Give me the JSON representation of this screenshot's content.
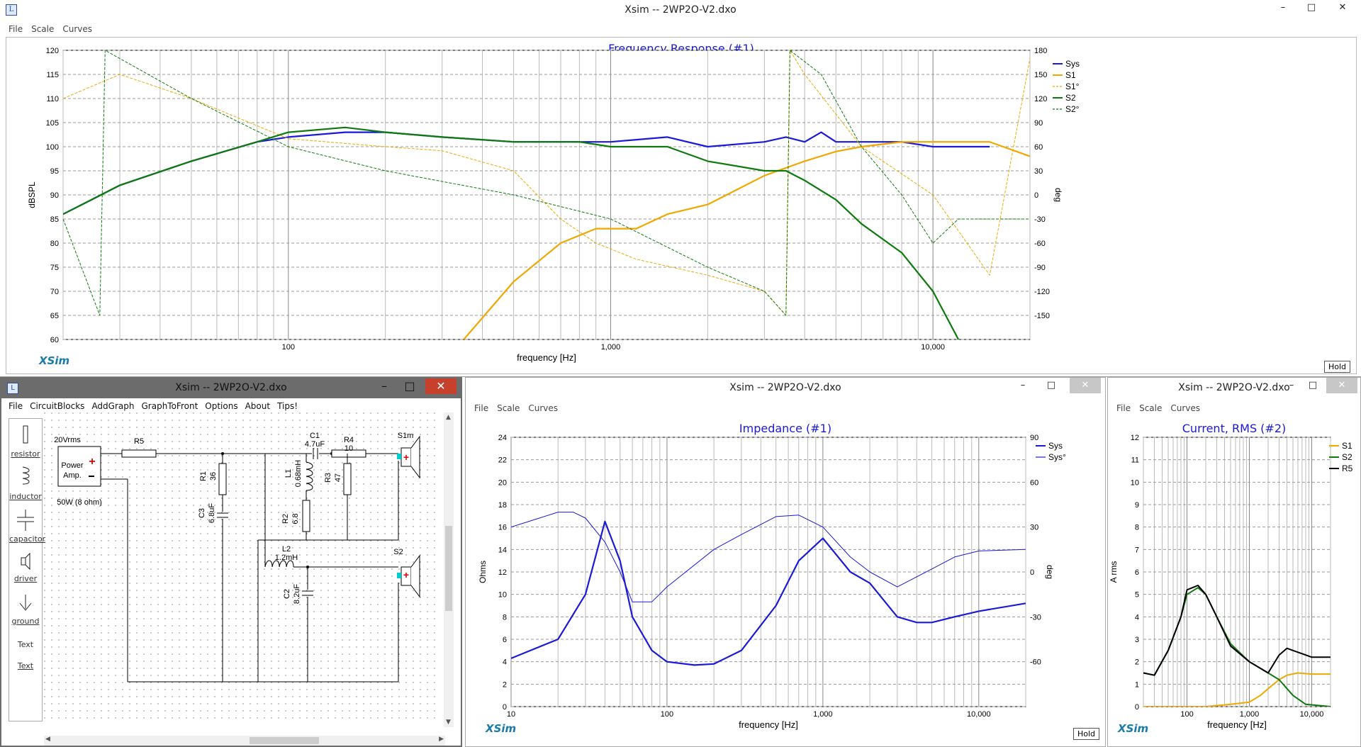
{
  "top_window": {
    "title": "Xsim -- 2WP2O-V2.dxo",
    "menu": [
      "File",
      "Scale",
      "Curves"
    ],
    "graph_title": "Frequency Response (#1)",
    "y_left_label": "dBSPL",
    "y_right_label": "deg",
    "x_label": "frequency [Hz]",
    "logo": "XSim",
    "hold": "Hold",
    "y_left_ticks": [
      "120",
      "115",
      "110",
      "105",
      "100",
      "95",
      "90",
      "85",
      "80",
      "75",
      "70",
      "65",
      "60"
    ],
    "y_right_ticks": [
      "180",
      "150",
      "120",
      "90",
      "60",
      "30",
      "0",
      "-30",
      "-60",
      "-90",
      "-120",
      "-150"
    ],
    "x_ticks": [
      "100",
      "1,000",
      "10,000"
    ],
    "legend": [
      "Sys",
      "S1",
      "S1°",
      "S2",
      "S2°"
    ]
  },
  "circuit_window": {
    "title": "Xsim -- 2WP2O-V2.dxo",
    "menu": [
      "File",
      "CircuitBlocks",
      "AddGraph",
      "GraphToFront",
      "Options",
      "About",
      "Tips!"
    ],
    "palette": [
      "resistor",
      "inductor",
      "capacitor",
      "driver",
      "ground",
      "Text",
      "Text"
    ],
    "components": {
      "source": "20Vrms",
      "amp_line1": "Power",
      "amp_line2": "Amp.",
      "amp_rating": "50W (8 ohm)",
      "r5": "R5",
      "c1": "C1",
      "c1v": "4.7uF",
      "r4": "R4",
      "r4v": "10",
      "s1": "S1m",
      "r1": "R1",
      "r1v": "36",
      "l1": "L1",
      "l1v": "0.68mH",
      "r3": "R3",
      "r3v": "47",
      "c3": "C3",
      "c3v": "6.8uF",
      "r2": "R2",
      "r2v": "6.8",
      "l2": "L2",
      "l2v": "1.2mH",
      "s2": "S2",
      "c2": "C2",
      "c2v": "8.2uF"
    }
  },
  "impedance_window": {
    "title": "Xsim -- 2WP2O-V2.dxo",
    "menu": [
      "File",
      "Scale",
      "Curves"
    ],
    "graph_title": "Impedance (#1)",
    "y_left_label": "Ohms",
    "y_right_label": "deg",
    "x_label": "frequency [Hz]",
    "logo": "XSim",
    "hold": "Hold",
    "y_left_ticks": [
      "24",
      "22",
      "20",
      "18",
      "16",
      "14",
      "12",
      "10",
      "8",
      "6",
      "4",
      "2",
      "0"
    ],
    "y_right_ticks": [
      "90",
      "60",
      "30",
      "0",
      "-30",
      "-60"
    ],
    "x_ticks": [
      "10",
      "100",
      "1,000",
      "10,000"
    ],
    "legend": [
      "Sys",
      "Sys°"
    ]
  },
  "current_window": {
    "title": "Xsim -- 2WP2O-V2.dxo",
    "menu": [
      "File",
      "Scale",
      "Curves"
    ],
    "graph_title": "Current, RMS (#2)",
    "y_left_label": "A rms",
    "x_label": "frequency [Hz]",
    "logo": "XSim",
    "y_left_ticks": [
      "12",
      "11",
      "10",
      "9",
      "8",
      "7",
      "6",
      "5",
      "4",
      "3",
      "2",
      "1",
      "0"
    ],
    "x_ticks": [
      "100",
      "1,000",
      "10,000"
    ],
    "legend": [
      "S1",
      "S2",
      "R5"
    ]
  },
  "colors": {
    "sys": "#1a1ad8",
    "s1": "#f0a800",
    "s2": "#0e7a0e",
    "r5": "#000000",
    "title_blue": "#1a1ad8",
    "logo": "#1a7bab",
    "close_red": "#c7402b"
  },
  "chart_data": [
    {
      "type": "line",
      "title": "Frequency Response (#1)",
      "xlabel": "frequency [Hz]",
      "ylabel": "dBSPL",
      "x_scale": "log",
      "xlim": [
        20,
        20000
      ],
      "ylim": [
        60,
        120
      ],
      "y2lim": [
        -180,
        180
      ],
      "grid": true,
      "legend_position": "top-right",
      "series": [
        {
          "name": "Sys",
          "axis": "left",
          "x": [
            20,
            30,
            50,
            80,
            100,
            150,
            200,
            300,
            500,
            800,
            1000,
            1500,
            2000,
            3000,
            3500,
            4000,
            4500,
            5000,
            6000,
            8000,
            10000,
            15000
          ],
          "values": [
            86,
            92,
            97,
            101,
            102,
            103,
            103,
            102,
            101,
            101,
            101,
            102,
            100,
            101,
            102,
            101,
            103,
            101,
            101,
            101,
            100,
            100
          ]
        },
        {
          "name": "S1",
          "axis": "left",
          "x": [
            350,
            500,
            700,
            900,
            1200,
            1500,
            2000,
            3000,
            4000,
            5000,
            6000,
            8000,
            10000,
            15000,
            20000
          ],
          "values": [
            60,
            72,
            80,
            83,
            83,
            86,
            88,
            94,
            97,
            99,
            100,
            101,
            101,
            101,
            98
          ]
        },
        {
          "name": "S1°",
          "axis": "right",
          "x": [
            20,
            30,
            50,
            100,
            200,
            300,
            500,
            700,
            900,
            1200,
            2000,
            3000,
            3500,
            3600,
            4000,
            6000,
            10000,
            15000,
            20000
          ],
          "values": [
            120,
            150,
            120,
            70,
            60,
            55,
            30,
            -30,
            -60,
            -80,
            -100,
            -120,
            -150,
            180,
            150,
            60,
            0,
            -100,
            170
          ]
        },
        {
          "name": "S2",
          "axis": "left",
          "x": [
            20,
            30,
            50,
            80,
            100,
            150,
            200,
            300,
            500,
            800,
            1000,
            1500,
            2000,
            3000,
            3500,
            4000,
            5000,
            6000,
            8000,
            10000,
            12000
          ],
          "values": [
            86,
            92,
            97,
            101,
            103,
            104,
            103,
            102,
            101,
            101,
            100,
            100,
            97,
            95,
            95,
            93,
            89,
            84,
            78,
            70,
            60
          ]
        },
        {
          "name": "S2°",
          "axis": "right",
          "x": [
            20,
            26,
            27,
            50,
            100,
            200,
            500,
            1000,
            2000,
            3000,
            3500,
            3600,
            4500,
            6000,
            8000,
            10000,
            12000,
            15000,
            20000
          ],
          "values": [
            -30,
            -150,
            180,
            120,
            60,
            30,
            0,
            -30,
            -90,
            -120,
            -150,
            180,
            150,
            60,
            0,
            -60,
            -30,
            -30,
            -30
          ]
        }
      ]
    },
    {
      "type": "line",
      "title": "Impedance (#1)",
      "xlabel": "frequency [Hz]",
      "ylabel": "Ohms",
      "x_scale": "log",
      "xlim": [
        10,
        20000
      ],
      "ylim": [
        0,
        24
      ],
      "y2lim": [
        -90,
        90
      ],
      "grid": true,
      "legend_position": "top-right",
      "series": [
        {
          "name": "Sys",
          "axis": "left",
          "x": [
            10,
            20,
            30,
            40,
            50,
            60,
            80,
            100,
            150,
            200,
            300,
            500,
            700,
            1000,
            1500,
            2000,
            3000,
            4000,
            5000,
            7000,
            10000,
            20000
          ],
          "values": [
            4.3,
            6,
            10,
            16.5,
            13,
            8,
            5,
            4,
            3.7,
            3.8,
            5,
            9,
            13,
            15,
            12,
            11,
            8,
            7.5,
            7.5,
            8,
            8.5,
            9.2
          ]
        },
        {
          "name": "Sys°",
          "axis": "right",
          "x": [
            10,
            20,
            25,
            30,
            40,
            50,
            60,
            80,
            100,
            200,
            300,
            500,
            700,
            1000,
            1500,
            2000,
            3000,
            5000,
            7000,
            10000,
            20000
          ],
          "values": [
            30,
            40,
            40,
            36,
            20,
            0,
            -20,
            -20,
            -10,
            15,
            25,
            37,
            38,
            30,
            10,
            0,
            -10,
            2,
            10,
            14,
            15
          ]
        }
      ]
    },
    {
      "type": "line",
      "title": "Current, RMS (#2)",
      "xlabel": "frequency [Hz]",
      "ylabel": "A rms",
      "x_scale": "log",
      "xlim": [
        20,
        20000
      ],
      "ylim": [
        0,
        12
      ],
      "grid": true,
      "legend_position": "top-right",
      "series": [
        {
          "name": "S1",
          "x": [
            20,
            100,
            200,
            500,
            1000,
            1500,
            2000,
            3000,
            4000,
            6000,
            10000,
            20000
          ],
          "values": [
            0,
            0,
            0,
            0.1,
            0.2,
            0.5,
            0.8,
            1.2,
            1.4,
            1.5,
            1.45,
            1.45
          ]
        },
        {
          "name": "S2",
          "x": [
            20,
            30,
            50,
            80,
            100,
            150,
            200,
            300,
            500,
            1000,
            2000,
            3000,
            5000,
            8000,
            20000
          ],
          "values": [
            1.5,
            1.4,
            2.5,
            4,
            5,
            5.3,
            5,
            4,
            2.8,
            2,
            1.5,
            1.2,
            0.5,
            0.1,
            0
          ]
        },
        {
          "name": "R5",
          "x": [
            20,
            30,
            50,
            80,
            100,
            150,
            200,
            300,
            500,
            1000,
            2000,
            3000,
            4000,
            5000,
            8000,
            10000,
            20000
          ],
          "values": [
            1.5,
            1.4,
            2.5,
            4,
            5.2,
            5.4,
            5,
            4,
            2.7,
            2,
            1.5,
            2.3,
            2.6,
            2.5,
            2.3,
            2.2,
            2.2
          ]
        }
      ]
    }
  ]
}
